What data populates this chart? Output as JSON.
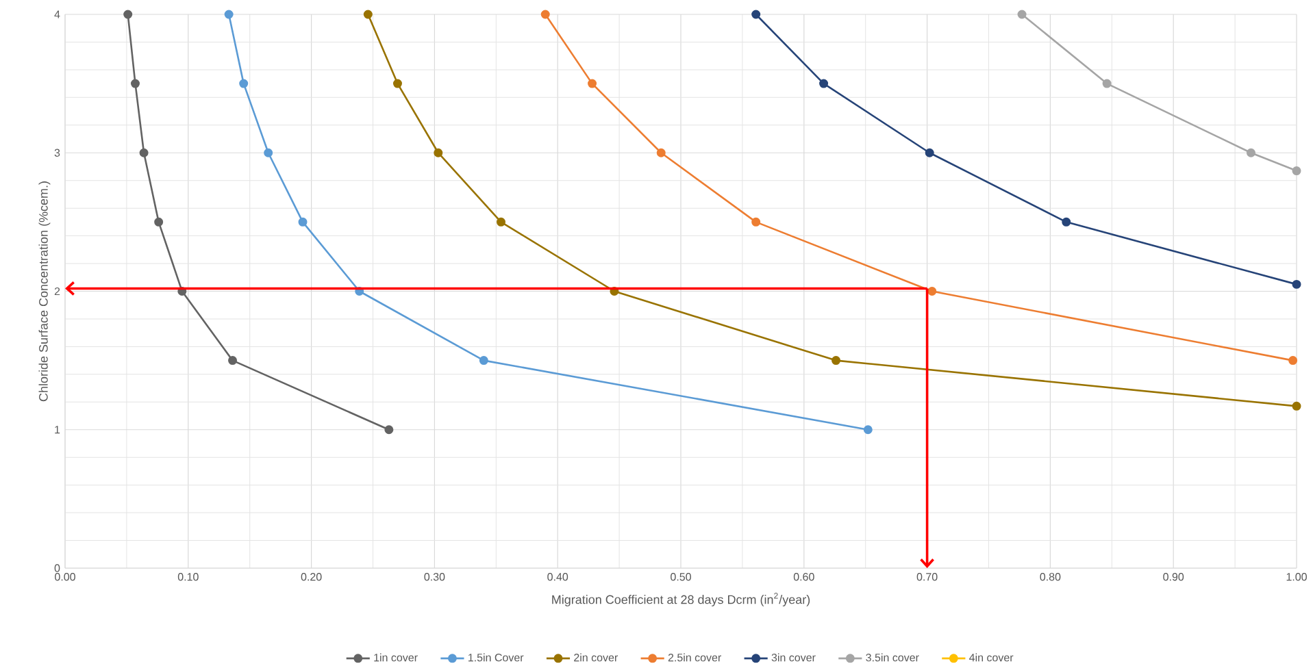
{
  "chart_data": {
    "type": "line",
    "xlabel": "Migration Coefficient at 28 days Dcrm (in$^{2}$/year)",
    "ylabel": "Chloride Surface Concentration (%cem.)",
    "series": [
      {
        "name": "1in cover",
        "color": "#636363",
        "x": [
          0.051,
          0.057,
          0.064,
          0.076,
          0.095,
          0.136,
          0.263
        ],
        "values": [
          4,
          3.5,
          3,
          2.5,
          2,
          1.5,
          1
        ]
      },
      {
        "name": "1.5in Cover",
        "color": "#5b9bd5",
        "x": [
          0.133,
          0.145,
          0.165,
          0.193,
          0.239,
          0.34,
          0.652
        ],
        "values": [
          4,
          3.5,
          3,
          2.5,
          2,
          1.5,
          1
        ]
      },
      {
        "name": "2in cover",
        "color": "#997300",
        "x": [
          0.246,
          0.27,
          0.303,
          0.354,
          0.446,
          0.626,
          1.0
        ],
        "values": [
          4,
          3.5,
          3,
          2.5,
          2,
          1.5,
          1.17
        ]
      },
      {
        "name": "2.5in cover",
        "color": "#ed7d31",
        "x": [
          0.39,
          0.428,
          0.484,
          0.561,
          0.704,
          0.997
        ],
        "values": [
          4,
          3.5,
          3,
          2.5,
          2,
          1.5
        ]
      },
      {
        "name": "3in cover",
        "color": "#264478",
        "x": [
          0.561,
          0.616,
          0.702,
          0.813,
          1.0
        ],
        "values": [
          4,
          3.5,
          3,
          2.5,
          2.05
        ]
      },
      {
        "name": "3.5in cover",
        "color": "#a5a5a5",
        "x": [
          0.777,
          0.846,
          0.963,
          1.0
        ],
        "values": [
          4,
          3.5,
          3,
          2.87
        ]
      },
      {
        "name": "4in cover",
        "color": "#ffc000"
      }
    ],
    "xlim": [
      0,
      1
    ],
    "ylim": [
      0,
      4
    ],
    "xticks": [
      {
        "value": 0,
        "label": "0.00"
      },
      {
        "value": 0.1,
        "label": "0.10"
      },
      {
        "value": 0.2,
        "label": "0.20"
      },
      {
        "value": 0.3,
        "label": "0.30"
      },
      {
        "value": 0.4,
        "label": "0.40"
      },
      {
        "value": 0.5,
        "label": "0.50"
      },
      {
        "value": 0.6,
        "label": "0.60"
      },
      {
        "value": 0.7,
        "label": "0.70"
      },
      {
        "value": 0.8,
        "label": "0.80"
      },
      {
        "value": 0.9,
        "label": "0.90"
      },
      {
        "value": 1,
        "label": "1.00"
      }
    ],
    "yticks": [
      0,
      1,
      2,
      3,
      4
    ],
    "ref_lines": [
      {
        "axis": "y",
        "value": 2.02,
        "color": "#ff0000"
      },
      {
        "axis": "x",
        "value": 0.7,
        "color": "#ff0000"
      }
    ],
    "grid": true,
    "legend": "bottom",
    "marker": "circle",
    "line_style": "solid"
  }
}
